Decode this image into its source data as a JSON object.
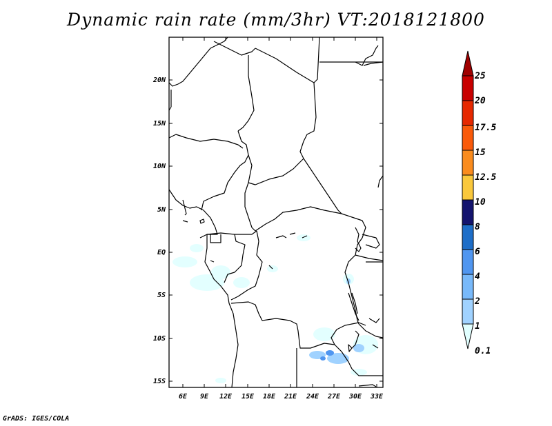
{
  "title": "Dynamic rain rate (mm/3hr) VT:2018121800",
  "credit": "GrADS: IGES/COLA",
  "map": {
    "lat_labels": [
      "20N",
      "15N",
      "10N",
      "5N",
      "EQ",
      "5S",
      "10S",
      "15S"
    ],
    "lon_labels": [
      "6E",
      "9E",
      "12E",
      "15E",
      "18E",
      "21E",
      "24E",
      "27E",
      "30E",
      "33E"
    ]
  },
  "colorbar": {
    "labels": [
      "0.1",
      "1",
      "2",
      "4",
      "6",
      "8",
      "10",
      "12.5",
      "15",
      "17.5",
      "20",
      "25"
    ],
    "colors": [
      "#e1ffff",
      "#a0d2ff",
      "#78b9fa",
      "#5096f0",
      "#1e6ec8",
      "#14146e",
      "#fac83c",
      "#fa8c1e",
      "#fa5a0a",
      "#e62800",
      "#c80000",
      "#a00000"
    ]
  },
  "rain_areas": [
    {
      "lon": 27.0,
      "lat": -11.3,
      "level": "2"
    },
    {
      "lon": 26.0,
      "lat": -11.0,
      "level": "1"
    },
    {
      "lon": 28.5,
      "lat": -11.2,
      "level": "1"
    },
    {
      "lon": 30.0,
      "lat": -3.7,
      "level": "0.1"
    },
    {
      "lon": 7.0,
      "lat": 0.5,
      "level": "0.1"
    },
    {
      "lon": 9.5,
      "lat": -1.5,
      "level": "0.1"
    }
  ]
}
